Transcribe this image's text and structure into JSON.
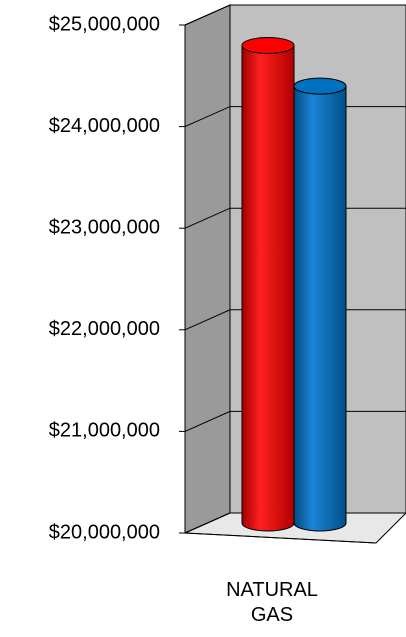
{
  "chart_data": {
    "type": "bar3d",
    "categories": [
      "NATURAL GAS"
    ],
    "series": [
      {
        "color": "#ff0000",
        "values": [
          24700000
        ]
      },
      {
        "color": "#0070c0",
        "values": [
          24300000
        ]
      }
    ],
    "ylim": [
      20000000,
      25000000
    ],
    "yticks": [
      {
        "value": 20000000,
        "label": "$20,000,000"
      },
      {
        "value": 21000000,
        "label": "$21,000,000"
      },
      {
        "value": 22000000,
        "label": "$22,000,000"
      },
      {
        "value": 23000000,
        "label": "$23,000,000"
      },
      {
        "value": 24000000,
        "label": "$24,000,000"
      },
      {
        "value": 25000000,
        "label": "$25,000,000"
      }
    ],
    "grid": true
  }
}
